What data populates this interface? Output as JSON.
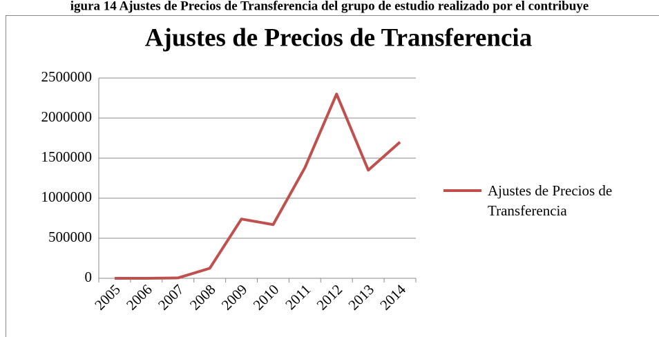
{
  "caption": "igura 14 Ajustes de Precios de Transferencia del grupo de estudio realizado por el contribuye",
  "chart_data": {
    "type": "line",
    "title": "Ajustes de Precios de Transferencia",
    "categories": [
      "2005",
      "2006",
      "2007",
      "2008",
      "2009",
      "2010",
      "2011",
      "2012",
      "2013",
      "2014"
    ],
    "series": [
      {
        "name": "Ajustes de Precios de Transferencia",
        "color": "#c0504d",
        "values": [
          0,
          0,
          5000,
          125000,
          740000,
          670000,
          1380000,
          2300000,
          1350000,
          1700000
        ]
      }
    ],
    "ylim": [
      0,
      2500000
    ],
    "yticks": [
      0,
      500000,
      1000000,
      1500000,
      2000000,
      2500000
    ],
    "grid": true,
    "legend": "right"
  }
}
